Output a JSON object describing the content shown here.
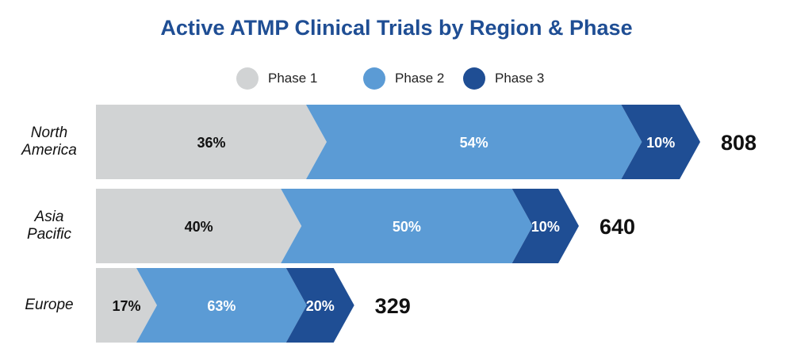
{
  "chart_data": {
    "type": "bar",
    "subtype": "stacked-horizontal-arrow",
    "title": "Active ATMP Clinical Trials by Region & Phase",
    "categories": [
      "North America",
      "Asia Pacific",
      "Europe"
    ],
    "category_lines": [
      [
        "North",
        "America"
      ],
      [
        "Asia",
        "Pacific"
      ],
      [
        "Europe"
      ]
    ],
    "series": [
      {
        "name": "Phase 1",
        "color": "#d1d3d4",
        "values": [
          36,
          40,
          17
        ]
      },
      {
        "name": "Phase 2",
        "color": "#5b9bd5",
        "values": [
          54,
          50,
          63
        ]
      },
      {
        "name": "Phase 3",
        "color": "#1f4e94",
        "values": [
          10,
          10,
          20
        ]
      }
    ],
    "segment_labels": [
      [
        "36%",
        "54%",
        "10%"
      ],
      [
        "40%",
        "50%",
        "10%"
      ],
      [
        "17%",
        "63%",
        "20%"
      ]
    ],
    "totals": [
      808,
      640,
      329
    ],
    "total_labels": [
      "808",
      "640",
      "329"
    ],
    "legend_position": "top-center"
  }
}
